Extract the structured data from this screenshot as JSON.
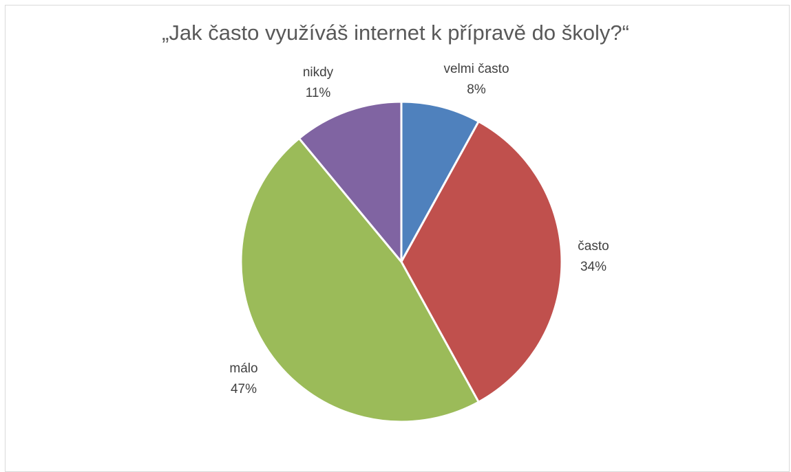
{
  "chart_data": {
    "type": "pie",
    "title": "„Jak často využíváš internet k přípravě do školy?“",
    "categories": [
      "velmi často",
      "často",
      "málo",
      "nikdy"
    ],
    "values": [
      8,
      34,
      47,
      11
    ],
    "data_labels": [
      "8%",
      "34%",
      "47%",
      "11%"
    ],
    "colors": [
      "#4f81bd",
      "#c0504d",
      "#9bbb59",
      "#8064a2"
    ],
    "start_angle_deg": 0,
    "direction": "clockwise",
    "legend": "none"
  }
}
